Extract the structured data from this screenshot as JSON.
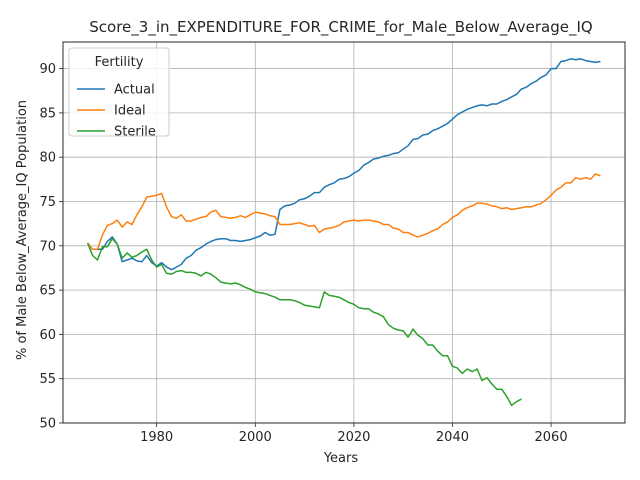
{
  "chart_data": {
    "type": "line",
    "title": "Score_3_in_EXPENDITURE_FOR_CRIME_for_Male_Below_Average_IQ",
    "xlabel": "Years",
    "ylabel": "% of Male Below_Average_IQ Population",
    "xlim": [
      1961,
      2075
    ],
    "ylim": [
      50,
      93
    ],
    "xticks": [
      1980,
      2000,
      2020,
      2040,
      2060
    ],
    "yticks": [
      50,
      55,
      60,
      65,
      70,
      75,
      80,
      85,
      90
    ],
    "grid": true,
    "legend": {
      "title": "Fertility",
      "placement": "top-left"
    },
    "series": [
      {
        "name": "Actual",
        "color": "#1f77b4",
        "x": [
          1966,
          1967,
          1968,
          1969,
          1970,
          1971,
          1972,
          1973,
          1974,
          1975,
          1976,
          1977,
          1978,
          1979,
          1980,
          1981,
          1982,
          1983,
          1984,
          1985,
          1986,
          1987,
          1988,
          1989,
          1990,
          1991,
          1992,
          1993,
          1994,
          1995,
          1996,
          1997,
          1998,
          1999,
          2000,
          2001,
          2002,
          2003,
          2004,
          2005,
          2006,
          2007,
          2008,
          2009,
          2010,
          2011,
          2012,
          2013,
          2014,
          2015,
          2016,
          2017,
          2018,
          2019,
          2020,
          2021,
          2022,
          2023,
          2024,
          2025,
          2026,
          2027,
          2028,
          2029,
          2030,
          2031,
          2032,
          2033,
          2034,
          2035,
          2036,
          2037,
          2038,
          2039,
          2040,
          2041,
          2042,
          2043,
          2044,
          2045,
          2046,
          2047,
          2048,
          2049,
          2050,
          2051,
          2052,
          2053,
          2054,
          2055,
          2056,
          2057,
          2058,
          2059,
          2060,
          2061,
          2062,
          2063,
          2064,
          2065,
          2066,
          2067,
          2068,
          2069,
          2070
        ],
        "y": [
          70.3,
          69.6,
          69.6,
          69.6,
          70.5,
          71.0,
          70.2,
          68.2,
          68.4,
          68.6,
          68.3,
          68.2,
          68.9,
          68.1,
          67.7,
          68.1,
          67.6,
          67.3,
          67.6,
          67.9,
          68.6,
          68.9,
          69.5,
          69.8,
          70.2,
          70.5,
          70.7,
          70.8,
          70.8,
          70.6,
          70.6,
          70.5,
          70.6,
          70.7,
          70.9,
          71.1,
          71.5,
          71.2,
          71.3,
          74.1,
          74.5,
          74.6,
          74.8,
          75.2,
          75.3,
          75.6,
          76.0,
          76.0,
          76.6,
          76.9,
          77.1,
          77.5,
          77.6,
          77.8,
          78.2,
          78.5,
          79.1,
          79.4,
          79.8,
          79.9,
          80.1,
          80.2,
          80.4,
          80.5,
          80.9,
          81.3,
          82.0,
          82.1,
          82.5,
          82.6,
          83.0,
          83.2,
          83.5,
          83.8,
          84.3,
          84.8,
          85.1,
          85.4,
          85.6,
          85.8,
          85.9,
          85.8,
          86.0,
          86.0,
          86.3,
          86.5,
          86.8,
          87.1,
          87.7,
          87.9,
          88.3,
          88.6,
          89.0,
          89.3,
          90.0,
          90.0,
          90.8,
          90.9,
          91.1,
          91.0,
          91.1,
          90.9,
          90.8,
          90.7,
          90.8
        ]
      },
      {
        "name": "Ideal",
        "color": "#ff7f0e",
        "x": [
          1966,
          1967,
          1968,
          1969,
          1970,
          1971,
          1972,
          1973,
          1974,
          1975,
          1976,
          1977,
          1978,
          1979,
          1980,
          1981,
          1982,
          1983,
          1984,
          1985,
          1986,
          1987,
          1988,
          1989,
          1990,
          1991,
          1992,
          1993,
          1994,
          1995,
          1996,
          1997,
          1998,
          1999,
          2000,
          2001,
          2002,
          2003,
          2004,
          2005,
          2006,
          2007,
          2008,
          2009,
          2010,
          2011,
          2012,
          2013,
          2014,
          2015,
          2016,
          2017,
          2018,
          2019,
          2020,
          2021,
          2022,
          2023,
          2024,
          2025,
          2026,
          2027,
          2028,
          2029,
          2030,
          2031,
          2032,
          2033,
          2034,
          2035,
          2036,
          2037,
          2038,
          2039,
          2040,
          2041,
          2042,
          2043,
          2044,
          2045,
          2046,
          2047,
          2048,
          2049,
          2050,
          2051,
          2052,
          2053,
          2054,
          2055,
          2056,
          2057,
          2058,
          2059,
          2060,
          2061,
          2062,
          2063,
          2064,
          2065,
          2066,
          2067,
          2068,
          2069,
          2070
        ],
        "y": [
          70.3,
          69.6,
          69.6,
          71.2,
          72.3,
          72.5,
          72.9,
          72.1,
          72.7,
          72.4,
          73.5,
          74.4,
          75.5,
          75.6,
          75.7,
          75.9,
          74.4,
          73.3,
          73.1,
          73.5,
          72.8,
          72.8,
          73.0,
          73.2,
          73.3,
          73.8,
          74.0,
          73.3,
          73.2,
          73.1,
          73.2,
          73.4,
          73.2,
          73.5,
          73.8,
          73.7,
          73.6,
          73.4,
          73.3,
          72.4,
          72.4,
          72.4,
          72.5,
          72.6,
          72.4,
          72.2,
          72.3,
          71.5,
          71.9,
          72.0,
          72.1,
          72.3,
          72.7,
          72.8,
          72.9,
          72.8,
          72.9,
          72.9,
          72.8,
          72.7,
          72.4,
          72.4,
          72.0,
          71.9,
          71.5,
          71.5,
          71.2,
          71.0,
          71.2,
          71.4,
          71.7,
          71.9,
          72.4,
          72.7,
          73.2,
          73.5,
          74.0,
          74.3,
          74.5,
          74.8,
          74.8,
          74.7,
          74.5,
          74.4,
          74.2,
          74.3,
          74.1,
          74.2,
          74.3,
          74.4,
          74.4,
          74.6,
          74.8,
          75.2,
          75.7,
          76.3,
          76.6,
          77.1,
          77.1,
          77.7,
          77.5,
          77.7,
          77.5,
          78.1,
          77.9
        ]
      },
      {
        "name": "Sterile",
        "color": "#2ca02c",
        "x": [
          1966,
          1967,
          1968,
          1969,
          1970,
          1971,
          1972,
          1973,
          1974,
          1975,
          1976,
          1977,
          1978,
          1979,
          1980,
          1981,
          1982,
          1983,
          1984,
          1985,
          1986,
          1987,
          1988,
          1989,
          1990,
          1991,
          1992,
          1993,
          1994,
          1995,
          1996,
          1997,
          1998,
          1999,
          2000,
          2001,
          2002,
          2003,
          2004,
          2005,
          2006,
          2007,
          2008,
          2009,
          2010,
          2011,
          2012,
          2013,
          2014,
          2015,
          2016,
          2017,
          2018,
          2019,
          2020,
          2021,
          2022,
          2023,
          2024,
          2025,
          2026,
          2027,
          2028,
          2029,
          2030,
          2031,
          2032,
          2033,
          2034,
          2035,
          2036,
          2037,
          2038,
          2039,
          2040,
          2041,
          2042,
          2043,
          2044,
          2045,
          2046,
          2047,
          2048,
          2049,
          2050,
          2051,
          2052,
          2053,
          2054
        ],
        "y": [
          70.3,
          68.9,
          68.4,
          69.9,
          69.9,
          70.8,
          70.2,
          68.6,
          69.2,
          68.7,
          68.9,
          69.3,
          69.6,
          68.4,
          67.6,
          67.9,
          66.9,
          66.8,
          67.1,
          67.2,
          67.0,
          67.0,
          66.9,
          66.6,
          67.0,
          66.8,
          66.4,
          65.9,
          65.8,
          65.7,
          65.8,
          65.6,
          65.3,
          65.1,
          64.8,
          64.7,
          64.6,
          64.4,
          64.2,
          63.9,
          63.9,
          63.9,
          63.8,
          63.6,
          63.3,
          63.2,
          63.1,
          63.0,
          64.8,
          64.4,
          64.3,
          64.2,
          63.9,
          63.6,
          63.4,
          63.0,
          62.9,
          62.9,
          62.5,
          62.3,
          62.0,
          61.1,
          60.7,
          60.5,
          60.4,
          59.7,
          60.6,
          59.9,
          59.5,
          58.8,
          58.8,
          58.1,
          57.6,
          57.6,
          56.4,
          56.2,
          55.6,
          56.1,
          55.8,
          56.1,
          54.8,
          55.1,
          54.4,
          53.8,
          53.8,
          53.0,
          52.0,
          52.4,
          52.7
        ]
      }
    ]
  }
}
